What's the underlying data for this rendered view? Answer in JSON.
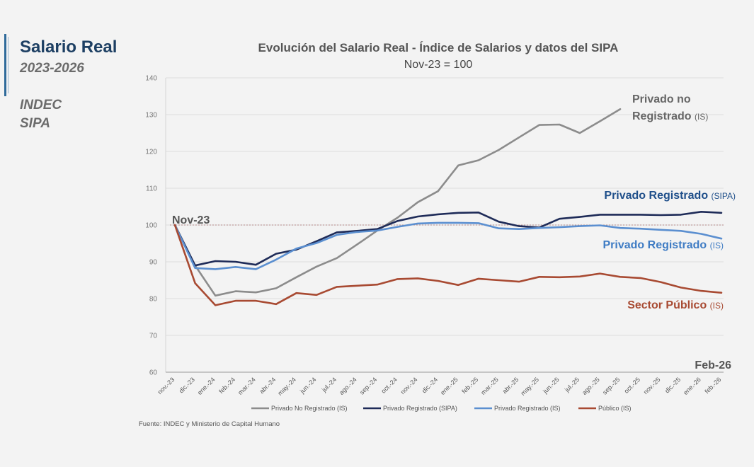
{
  "sidebar": {
    "title": "Salario Real",
    "years": "2023-2026",
    "source_1": "INDEC",
    "source_2": "SIPA"
  },
  "colors": {
    "accent": "#1d3f63",
    "no_registrado": "#8c8c8c",
    "sipa": "#1e2b58",
    "registrado_is": "#5b8fd0",
    "publico": "#a84a32"
  },
  "chart_data": {
    "type": "line",
    "title": "Evolución del Salario Real - Índice de Salarios y datos del SIPA",
    "subtitle": "Nov-23 = 100",
    "ylim": [
      60,
      140
    ],
    "yticks": [
      60,
      70,
      80,
      90,
      100,
      110,
      120,
      130,
      140
    ],
    "reference_line": {
      "y": 100,
      "style": "dotted"
    },
    "categories": [
      "nov.-23",
      "dic.-23",
      "ene.-24",
      "feb.-24",
      "mar.-24",
      "abr.-24",
      "may.-24",
      "jun.-24",
      "jul.-24",
      "ago.-24",
      "sep.-24",
      "oct.-24",
      "nov.-24",
      "dic.-24",
      "ene.-25",
      "feb.-25",
      "mar.-25",
      "abr.-25",
      "may.-25",
      "jun.-25",
      "jul.-25",
      "ago.-25",
      "sep.-25",
      "oct.-25",
      "nov.-25",
      "dic.-25",
      "ene.-26",
      "feb.-26"
    ],
    "series": [
      {
        "name": "Privado No Registrado (IS)",
        "color": "#8c8c8c",
        "values": [
          100,
          89,
          80.8,
          82,
          81.7,
          82.8,
          85.8,
          88.7,
          91,
          94.7,
          98.5,
          102,
          106.2,
          109.2,
          116.2,
          117.6,
          120.4,
          123.8,
          127.2,
          127.3,
          125,
          128.2,
          131.5,
          null,
          null,
          null,
          null,
          null
        ]
      },
      {
        "name": "Privado Registrado (SIPA)",
        "color": "#1e2b58",
        "values": [
          100,
          89,
          90.2,
          90,
          89.2,
          92.2,
          93.3,
          95.6,
          98,
          98.4,
          98.9,
          101.1,
          102.3,
          102.9,
          103.3,
          103.4,
          100.9,
          99.7,
          99.3,
          101.7,
          102.2,
          102.8,
          102.8,
          102.8,
          102.7,
          102.8,
          103.6,
          103.3
        ]
      },
      {
        "name": "Privado Registrado (IS)",
        "color": "#5b8fd0",
        "values": [
          100,
          88.3,
          88,
          88.6,
          88,
          90.6,
          93.6,
          95.1,
          97.3,
          98.1,
          98.5,
          99.5,
          100.4,
          100.6,
          100.6,
          100.5,
          99.1,
          98.9,
          99.2,
          99.4,
          99.7,
          99.9,
          99.2,
          99,
          98.7,
          98.4,
          97.6,
          96.3
        ]
      },
      {
        "name": "Público (IS)",
        "color": "#a84a32",
        "values": [
          100,
          84.2,
          78.2,
          79.4,
          79.4,
          78.5,
          81.5,
          81,
          83.2,
          83.5,
          83.8,
          85.3,
          85.5,
          84.8,
          83.7,
          85.4,
          85,
          84.6,
          85.9,
          85.8,
          86,
          86.8,
          85.9,
          85.6,
          84.5,
          83,
          82.1,
          81.6
        ]
      }
    ],
    "annotations": {
      "start": "Nov-23",
      "end": "Feb-26",
      "no_registrado_line1": "Privado no",
      "no_registrado_line2": "Registrado",
      "no_registrado_suffix": "(IS)",
      "sipa_main": "Privado Registrado",
      "sipa_suffix": "(SIPA)",
      "registrado_is_main": "Privado Registrado",
      "registrado_is_suffix": "(IS)",
      "publico_main": "Sector Público",
      "publico_suffix": "(IS)"
    },
    "source": "Fuente: INDEC y Ministerio de Capital Humano"
  }
}
